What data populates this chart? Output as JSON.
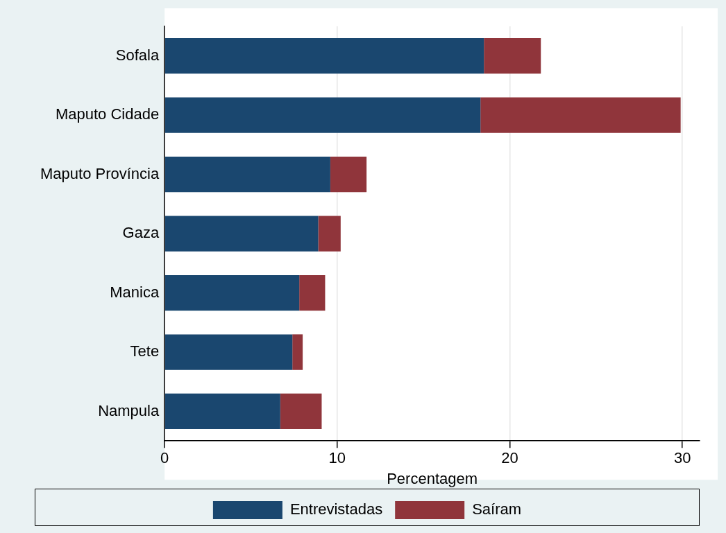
{
  "chart_data": {
    "type": "bar",
    "orientation": "horizontal",
    "stacked": true,
    "xlabel": "Percentagem",
    "categories": [
      "Sofala",
      "Maputo Cidade",
      "Maputo Província",
      "Gaza",
      "Manica",
      "Tete",
      "Nampula"
    ],
    "series": [
      {
        "name": "Entrevistadas",
        "color": "#1a476f",
        "values": [
          18.5,
          18.3,
          9.6,
          8.9,
          7.8,
          7.4,
          6.7
        ]
      },
      {
        "name": "Saíram",
        "color": "#90353b",
        "values": [
          3.3,
          11.6,
          2.1,
          1.3,
          1.5,
          0.6,
          2.4
        ]
      }
    ],
    "xlim": [
      0,
      31
    ],
    "xticks": [
      0,
      10,
      20,
      30
    ],
    "grid": "x",
    "legend": "bottom"
  }
}
